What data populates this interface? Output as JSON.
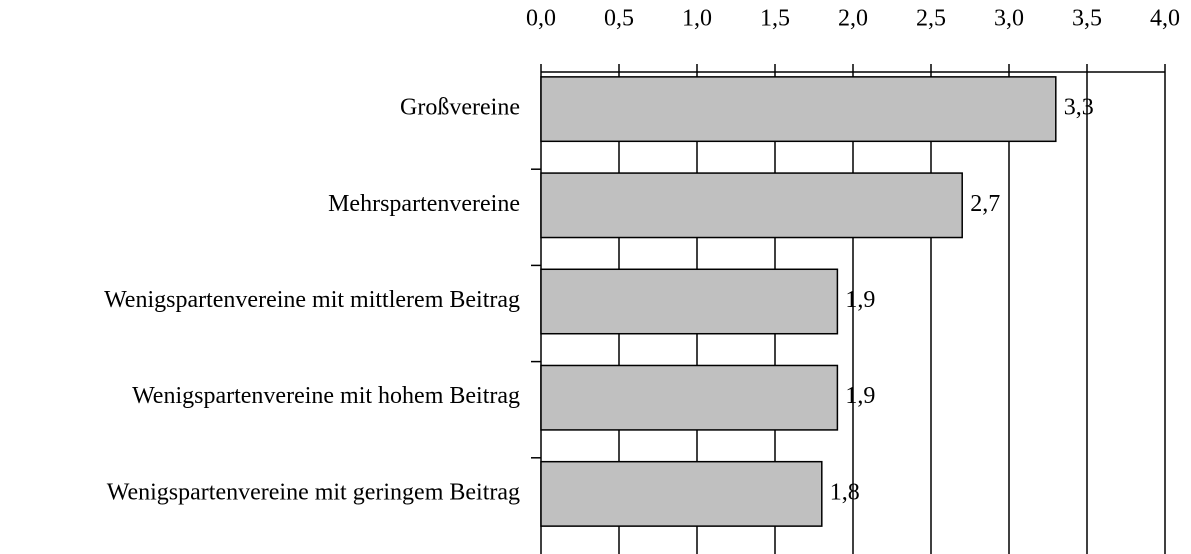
{
  "chart_data": {
    "type": "bar",
    "orientation": "horizontal",
    "categories": [
      "Großvereine",
      "Mehrspartenvereine",
      "Wenigspartenvereine mit mittlerem Beitrag",
      "Wenigspartenvereine mit hohem Beitrag",
      "Wenigspartenvereine mit geringem Beitrag"
    ],
    "values": [
      3.3,
      2.7,
      1.9,
      1.9,
      1.8
    ],
    "value_labels": [
      "3,3",
      "2,7",
      "1,9",
      "1,9",
      "1,8"
    ],
    "color": "#c0c0c0",
    "xlim": [
      0,
      4
    ],
    "xticks": [
      {
        "value": 0,
        "label": "0,0"
      },
      {
        "value": 0.5,
        "label": "0,5"
      },
      {
        "value": 1,
        "label": "1,0"
      },
      {
        "value": 1.5,
        "label": "1,5"
      },
      {
        "value": 2,
        "label": "2,0"
      },
      {
        "value": 2.5,
        "label": "2,5"
      },
      {
        "value": 3,
        "label": "3,0"
      },
      {
        "value": 3.5,
        "label": "3,5"
      },
      {
        "value": 4,
        "label": "4,0"
      }
    ],
    "grid": true
  }
}
